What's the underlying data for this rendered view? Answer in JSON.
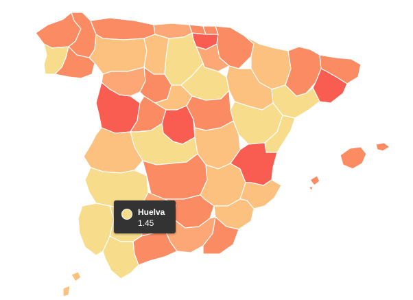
{
  "map": {
    "palette": {
      "level_1": "#f7dc8c",
      "level_2": "#fcc17e",
      "level_3": "#fca775",
      "level_4": "#fb8b62",
      "level_5": "#f95d52",
      "border": "#ffffff"
    }
  },
  "tooltip": {
    "region": "Huelva",
    "value": "1.45",
    "swatch_color": "#f7dc8c"
  }
}
